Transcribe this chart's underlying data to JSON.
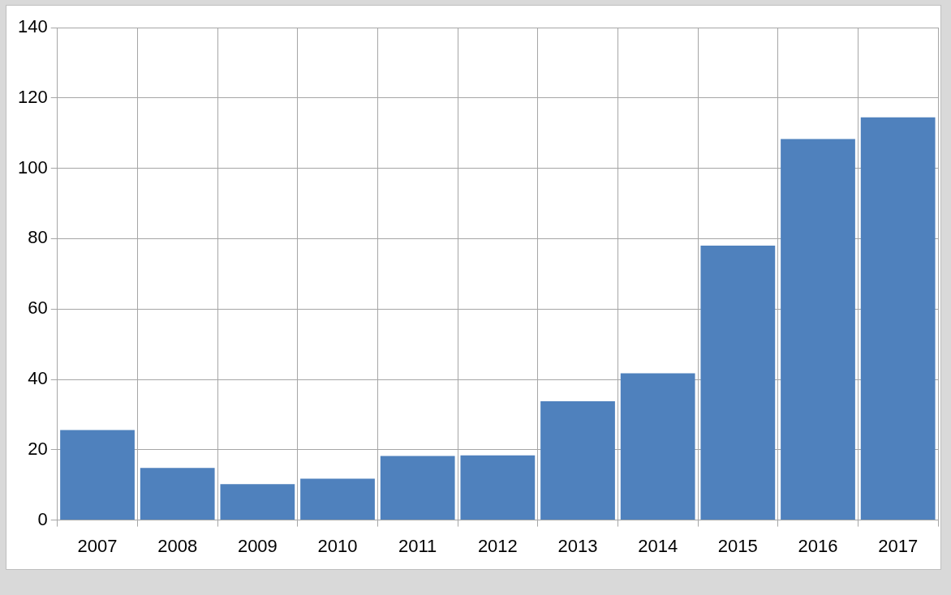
{
  "chart_data": {
    "type": "bar",
    "categories": [
      "2007",
      "2008",
      "2009",
      "2010",
      "2011",
      "2012",
      "2013",
      "2014",
      "2015",
      "2016",
      "2017"
    ],
    "values": [
      25.6,
      14.8,
      10.2,
      11.8,
      18.2,
      18.4,
      33.8,
      41.7,
      78.0,
      108.3,
      114.5
    ],
    "color": "#4f81bd",
    "ylim": [
      0,
      140
    ],
    "yticks": [
      0,
      20,
      40,
      60,
      80,
      100,
      120,
      140
    ],
    "grid": true
  }
}
